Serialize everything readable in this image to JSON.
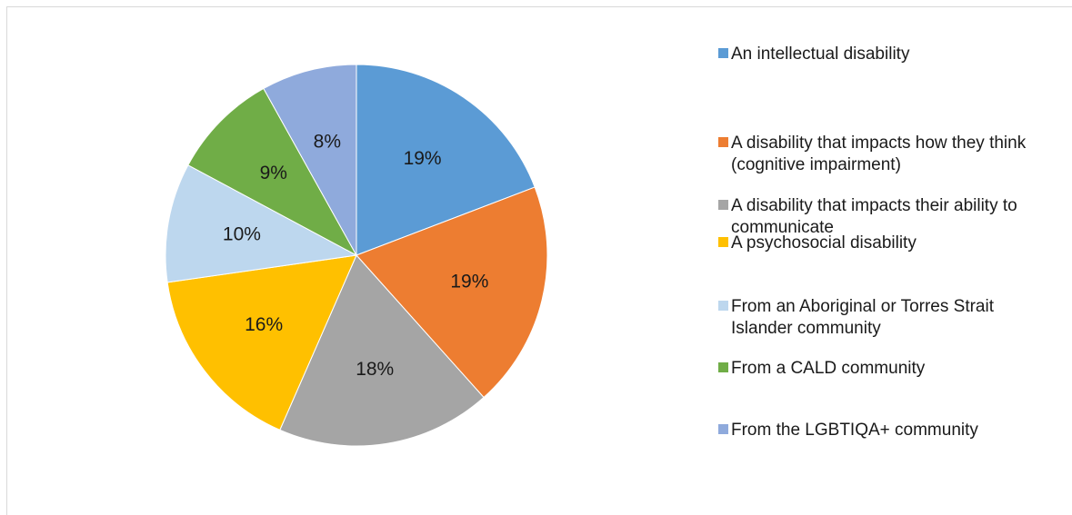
{
  "chart_data": {
    "type": "pie",
    "title": "",
    "start_angle_deg": 0,
    "direction": "clockwise",
    "legend_position": "right",
    "slices": [
      {
        "label": "An intellectual disability",
        "value": 19,
        "display": "19%",
        "color": "#5b9bd5"
      },
      {
        "label": "A disability that impacts how they think (cognitive impairment)",
        "value": 19,
        "display": "19%",
        "color": "#ed7d31"
      },
      {
        "label": "A disability that impacts their ability to communicate",
        "value": 18,
        "display": "18%",
        "color": "#a5a5a5"
      },
      {
        "label": "A psychosocial disability",
        "value": 16,
        "display": "16%",
        "color": "#ffc000"
      },
      {
        "label": "From an Aboriginal or Torres Strait Islander community",
        "value": 10,
        "display": "10%",
        "color": "#bdd7ee"
      },
      {
        "label": "From a CALD community",
        "value": 9,
        "display": "9%",
        "color": "#70ad47"
      },
      {
        "label": "From the LGBTIQA+ community",
        "value": 8,
        "display": "8%",
        "color": "#8faadc"
      }
    ]
  }
}
